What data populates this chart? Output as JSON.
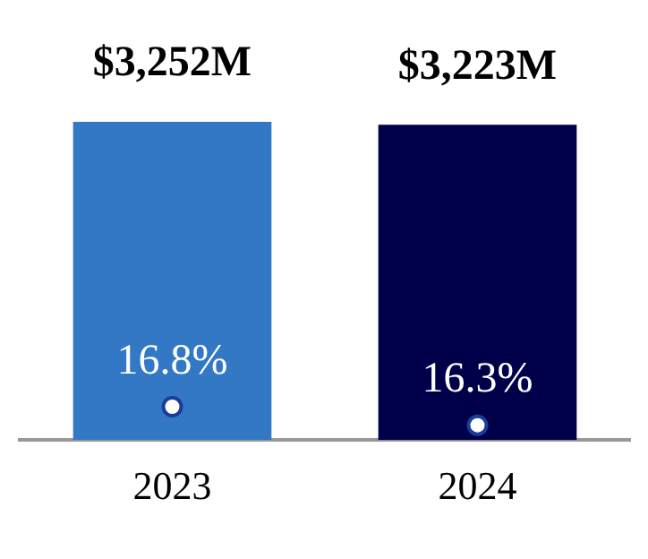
{
  "chart_data": {
    "type": "bar",
    "categories": [
      "2023",
      "2024"
    ],
    "ylim": [
      0,
      3252
    ],
    "series": [
      {
        "colors": [
          "#3278c4",
          "#00004a"
        ],
        "values": [
          3252,
          3223
        ],
        "value_labels": [
          "$3,252M",
          "$3,223M"
        ]
      },
      {
        "type": "scatter",
        "axis": "y2",
        "color": "#1a3d99",
        "values": [
          16.8,
          16.3
        ],
        "value_labels": [
          "16.8%",
          "16.3%"
        ]
      }
    ],
    "y2lim": [
      15.9,
      24.5
    ],
    "tick_labels": "x",
    "grid": false,
    "legend": false,
    "marker": "circle"
  }
}
